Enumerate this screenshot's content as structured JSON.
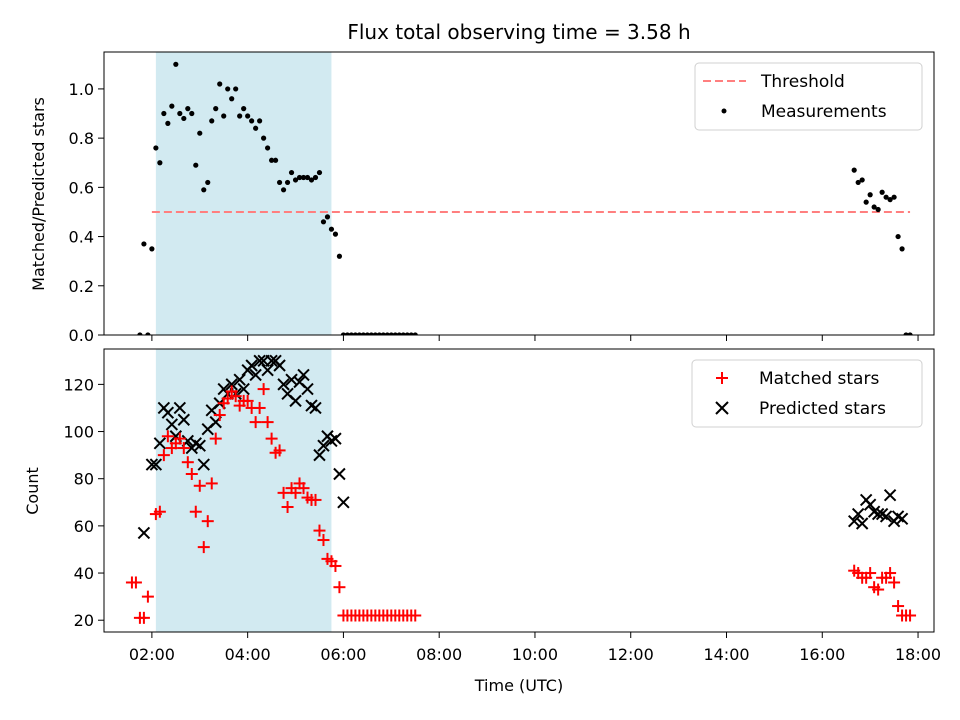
{
  "title": "Flux total observing time = 3.58 h",
  "colors": {
    "threshold": "#ff7f7f",
    "measurement": "#000000",
    "matched": "#ff0000",
    "predicted": "#000000",
    "shade": "#add8e6"
  },
  "chart_data": [
    {
      "type": "scatter",
      "panel": "top",
      "ylabel": "Matched/Predicted stars",
      "xlim": [
        "01:00",
        "18:20"
      ],
      "ylim": [
        0,
        1.15
      ],
      "yticks": [
        0.0,
        0.2,
        0.4,
        0.6,
        0.8,
        1.0
      ],
      "ytick_labels": [
        "0.0",
        "0.2",
        "0.4",
        "0.6",
        "0.8",
        "1.0"
      ],
      "shaded_interval": [
        "02:05",
        "05:45"
      ],
      "legend": {
        "position": "top-right",
        "entries": [
          "Threshold",
          "Measurements"
        ]
      },
      "series": [
        {
          "name": "Threshold",
          "style": "dashed-line",
          "points": [
            [
              "02:00",
              0.5
            ],
            [
              "17:50",
              0.5
            ]
          ]
        },
        {
          "name": "Measurements",
          "style": "dot",
          "points": [
            [
              "01:45",
              0.0
            ],
            [
              "01:55",
              0.0
            ],
            [
              "01:50",
              0.37
            ],
            [
              "02:00",
              0.35
            ],
            [
              "02:05",
              0.76
            ],
            [
              "02:10",
              0.7
            ],
            [
              "02:15",
              0.9
            ],
            [
              "02:20",
              0.86
            ],
            [
              "02:25",
              0.93
            ],
            [
              "02:30",
              1.1
            ],
            [
              "02:35",
              0.9
            ],
            [
              "02:40",
              0.88
            ],
            [
              "02:45",
              0.92
            ],
            [
              "02:50",
              0.9
            ],
            [
              "02:55",
              0.69
            ],
            [
              "03:00",
              0.82
            ],
            [
              "03:05",
              0.59
            ],
            [
              "03:10",
              0.62
            ],
            [
              "03:15",
              0.87
            ],
            [
              "03:20",
              0.92
            ],
            [
              "03:25",
              1.02
            ],
            [
              "03:30",
              0.89
            ],
            [
              "03:35",
              1.0
            ],
            [
              "03:40",
              0.96
            ],
            [
              "03:45",
              1.0
            ],
            [
              "03:50",
              0.89
            ],
            [
              "03:55",
              0.92
            ],
            [
              "04:00",
              0.89
            ],
            [
              "04:05",
              0.87
            ],
            [
              "04:10",
              0.84
            ],
            [
              "04:15",
              0.87
            ],
            [
              "04:20",
              0.8
            ],
            [
              "04:25",
              0.76
            ],
            [
              "04:30",
              0.71
            ],
            [
              "04:35",
              0.71
            ],
            [
              "04:40",
              0.62
            ],
            [
              "04:45",
              0.59
            ],
            [
              "04:50",
              0.62
            ],
            [
              "04:55",
              0.66
            ],
            [
              "05:00",
              0.63
            ],
            [
              "05:05",
              0.64
            ],
            [
              "05:10",
              0.64
            ],
            [
              "05:15",
              0.64
            ],
            [
              "05:20",
              0.63
            ],
            [
              "05:25",
              0.64
            ],
            [
              "05:30",
              0.66
            ],
            [
              "05:35",
              0.46
            ],
            [
              "05:40",
              0.48
            ],
            [
              "05:45",
              0.43
            ],
            [
              "05:50",
              0.41
            ],
            [
              "05:55",
              0.32
            ],
            [
              "06:00",
              0.0
            ],
            [
              "06:05",
              0.0
            ],
            [
              "06:10",
              0.0
            ],
            [
              "06:15",
              0.0
            ],
            [
              "06:20",
              0.0
            ],
            [
              "06:25",
              0.0
            ],
            [
              "06:30",
              0.0
            ],
            [
              "06:35",
              0.0
            ],
            [
              "06:40",
              0.0
            ],
            [
              "06:45",
              0.0
            ],
            [
              "06:50",
              0.0
            ],
            [
              "06:55",
              0.0
            ],
            [
              "07:00",
              0.0
            ],
            [
              "07:05",
              0.0
            ],
            [
              "07:10",
              0.0
            ],
            [
              "07:15",
              0.0
            ],
            [
              "07:20",
              0.0
            ],
            [
              "07:25",
              0.0
            ],
            [
              "07:30",
              0.0
            ],
            [
              "16:40",
              0.67
            ],
            [
              "16:45",
              0.62
            ],
            [
              "16:50",
              0.63
            ],
            [
              "16:55",
              0.54
            ],
            [
              "17:00",
              0.57
            ],
            [
              "17:05",
              0.52
            ],
            [
              "17:10",
              0.51
            ],
            [
              "17:15",
              0.58
            ],
            [
              "17:20",
              0.56
            ],
            [
              "17:25",
              0.55
            ],
            [
              "17:30",
              0.56
            ],
            [
              "17:35",
              0.4
            ],
            [
              "17:40",
              0.35
            ],
            [
              "17:45",
              0.0
            ],
            [
              "17:50",
              0.0
            ]
          ]
        }
      ]
    },
    {
      "type": "scatter",
      "panel": "bottom",
      "xlabel": "Time (UTC)",
      "ylabel": "Count",
      "xlim": [
        "01:00",
        "18:20"
      ],
      "ylim": [
        15,
        135
      ],
      "xticks": [
        "02:00",
        "04:00",
        "06:00",
        "08:00",
        "10:00",
        "12:00",
        "14:00",
        "16:00",
        "18:00"
      ],
      "yticks": [
        20,
        40,
        60,
        80,
        100,
        120
      ],
      "ytick_labels": [
        "20",
        "40",
        "60",
        "80",
        "100",
        "120"
      ],
      "shaded_interval": [
        "02:05",
        "05:45"
      ],
      "legend": {
        "position": "top-right",
        "entries": [
          "Matched stars",
          "Predicted stars"
        ]
      },
      "series": [
        {
          "name": "Matched stars",
          "marker": "plus",
          "points": [
            [
              "01:35",
              36
            ],
            [
              "01:40",
              36
            ],
            [
              "01:45",
              21
            ],
            [
              "01:50",
              21
            ],
            [
              "01:55",
              30
            ],
            [
              "02:05",
              65
            ],
            [
              "02:10",
              66
            ],
            [
              "02:15",
              90
            ],
            [
              "02:20",
              98
            ],
            [
              "02:25",
              93
            ],
            [
              "02:30",
              95
            ],
            [
              "02:35",
              97
            ],
            [
              "02:40",
              93
            ],
            [
              "02:45",
              87
            ],
            [
              "02:50",
              82
            ],
            [
              "02:55",
              66
            ],
            [
              "03:00",
              77
            ],
            [
              "03:05",
              51
            ],
            [
              "03:10",
              62
            ],
            [
              "03:15",
              78
            ],
            [
              "03:20",
              97
            ],
            [
              "03:25",
              107
            ],
            [
              "03:30",
              112
            ],
            [
              "03:35",
              114
            ],
            [
              "03:40",
              117
            ],
            [
              "03:45",
              115
            ],
            [
              "03:50",
              111
            ],
            [
              "03:55",
              113
            ],
            [
              "04:00",
              113
            ],
            [
              "04:05",
              110
            ],
            [
              "04:10",
              104
            ],
            [
              "04:15",
              110
            ],
            [
              "04:20",
              118
            ],
            [
              "04:25",
              104
            ],
            [
              "04:30",
              97
            ],
            [
              "04:35",
              91
            ],
            [
              "04:40",
              92
            ],
            [
              "04:45",
              74
            ],
            [
              "04:50",
              68
            ],
            [
              "04:55",
              76
            ],
            [
              "05:00",
              74
            ],
            [
              "05:05",
              78
            ],
            [
              "05:10",
              76
            ],
            [
              "05:15",
              72
            ],
            [
              "05:20",
              71
            ],
            [
              "05:25",
              71
            ],
            [
              "05:30",
              58
            ],
            [
              "05:35",
              54
            ],
            [
              "05:40",
              46
            ],
            [
              "05:45",
              45
            ],
            [
              "05:50",
              43
            ],
            [
              "05:55",
              34
            ],
            [
              "06:00",
              22
            ],
            [
              "06:05",
              22
            ],
            [
              "06:10",
              22
            ],
            [
              "06:15",
              22
            ],
            [
              "06:20",
              22
            ],
            [
              "06:25",
              22
            ],
            [
              "06:30",
              22
            ],
            [
              "06:35",
              22
            ],
            [
              "06:40",
              22
            ],
            [
              "06:45",
              22
            ],
            [
              "06:50",
              22
            ],
            [
              "06:55",
              22
            ],
            [
              "07:00",
              22
            ],
            [
              "07:05",
              22
            ],
            [
              "07:10",
              22
            ],
            [
              "07:15",
              22
            ],
            [
              "07:20",
              22
            ],
            [
              "07:25",
              22
            ],
            [
              "07:30",
              22
            ],
            [
              "16:40",
              41
            ],
            [
              "16:45",
              40
            ],
            [
              "16:50",
              38
            ],
            [
              "16:55",
              38
            ],
            [
              "17:00",
              40
            ],
            [
              "17:05",
              34
            ],
            [
              "17:10",
              33
            ],
            [
              "17:15",
              38
            ],
            [
              "17:20",
              38
            ],
            [
              "17:25",
              40
            ],
            [
              "17:30",
              36
            ],
            [
              "17:35",
              26
            ],
            [
              "17:40",
              22
            ],
            [
              "17:45",
              22
            ],
            [
              "17:50",
              22
            ]
          ]
        },
        {
          "name": "Predicted stars",
          "marker": "x",
          "points": [
            [
              "01:50",
              57
            ],
            [
              "02:00",
              86
            ],
            [
              "02:05",
              86
            ],
            [
              "02:10",
              95
            ],
            [
              "02:15",
              110
            ],
            [
              "02:20",
              108
            ],
            [
              "02:25",
              103
            ],
            [
              "02:30",
              98
            ],
            [
              "02:35",
              110
            ],
            [
              "02:40",
              105
            ],
            [
              "02:45",
              96
            ],
            [
              "02:50",
              93
            ],
            [
              "02:55",
              95
            ],
            [
              "03:00",
              94
            ],
            [
              "03:05",
              86
            ],
            [
              "03:10",
              101
            ],
            [
              "03:15",
              109
            ],
            [
              "03:20",
              104
            ],
            [
              "03:25",
              112
            ],
            [
              "03:30",
              118
            ],
            [
              "03:35",
              116
            ],
            [
              "03:40",
              120
            ],
            [
              "03:45",
              116
            ],
            [
              "03:50",
              122
            ],
            [
              "03:55",
              118
            ],
            [
              "04:00",
              126
            ],
            [
              "04:05",
              128
            ],
            [
              "04:10",
              124
            ],
            [
              "04:15",
              130
            ],
            [
              "04:20",
              130
            ],
            [
              "04:25",
              126
            ],
            [
              "04:30",
              130
            ],
            [
              "04:35",
              130
            ],
            [
              "04:40",
              128
            ],
            [
              "04:45",
              120
            ],
            [
              "04:50",
              116
            ],
            [
              "04:55",
              122
            ],
            [
              "05:00",
              113
            ],
            [
              "05:05",
              121
            ],
            [
              "05:10",
              124
            ],
            [
              "05:15",
              118
            ],
            [
              "05:20",
              111
            ],
            [
              "05:25",
              110
            ],
            [
              "05:30",
              90
            ],
            [
              "05:35",
              94
            ],
            [
              "05:40",
              98
            ],
            [
              "05:45",
              96
            ],
            [
              "05:50",
              97
            ],
            [
              "05:55",
              82
            ],
            [
              "06:00",
              70
            ],
            [
              "16:40",
              62
            ],
            [
              "16:45",
              65
            ],
            [
              "16:50",
              61
            ],
            [
              "16:55",
              71
            ],
            [
              "17:00",
              69
            ],
            [
              "17:05",
              66
            ],
            [
              "17:10",
              65
            ],
            [
              "17:15",
              65
            ],
            [
              "17:20",
              64
            ],
            [
              "17:25",
              73
            ],
            [
              "17:30",
              62
            ],
            [
              "17:35",
              64
            ],
            [
              "17:40",
              63
            ]
          ]
        }
      ]
    }
  ]
}
